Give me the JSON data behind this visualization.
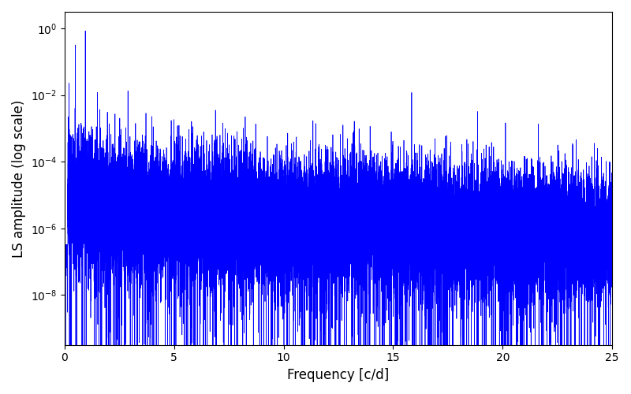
{
  "xlabel": "Frequency [c/d]",
  "ylabel": "LS amplitude (log scale)",
  "line_color": "#0000ff",
  "line_width": 0.5,
  "xlim": [
    0,
    25
  ],
  "ylim_log_min": -9.5,
  "ylim_log_max": 0.5,
  "yticks": [
    1e-08,
    1e-06,
    0.0001,
    0.01,
    1.0
  ],
  "xticks": [
    0,
    5,
    10,
    15,
    20,
    25
  ],
  "background_color": "#ffffff",
  "figsize": [
    8.0,
    5.0
  ],
  "dpi": 100,
  "n_points": 25000,
  "seed": 42,
  "freq_max": 25.0,
  "peak1_freq": 0.95,
  "peak1_amp": 0.85,
  "peak2_freq": 0.5,
  "peak2_amp": 0.32,
  "peak3_freq": 1.5,
  "peak3_amp": 0.012,
  "noise_floor_base": -5.0,
  "decay_rate": 0.12,
  "noise_std": 0.9
}
